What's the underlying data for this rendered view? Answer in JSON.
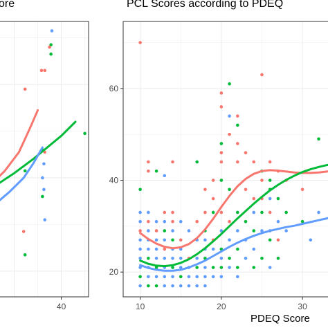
{
  "chart_data": [
    {
      "type": "scatter",
      "title": "ore",
      "xlabel": "",
      "ylabel": "",
      "x_ticks": [
        40
      ],
      "xlim": [
        25.5,
        45.8
      ],
      "ylim": [
        14.5,
        73.5
      ],
      "grid": true,
      "colors": {
        "red": "#F8766D",
        "green": "#00BA38",
        "blue": "#619CFF"
      },
      "points": [
        {
          "x": 38.0,
          "y": 71.5,
          "color": "blue"
        },
        {
          "x": 37.8,
          "y": 68.5,
          "color": "green"
        },
        {
          "x": 37.5,
          "y": 68.0,
          "color": "red"
        },
        {
          "x": 37.8,
          "y": 66.5,
          "color": "green"
        },
        {
          "x": 35.8,
          "y": 63.0,
          "color": "red"
        },
        {
          "x": 36.5,
          "y": 63.0,
          "color": "red"
        },
        {
          "x": 32.3,
          "y": 59.0,
          "color": "red"
        },
        {
          "x": 36.0,
          "y": 46.0,
          "color": "green"
        },
        {
          "x": 36.5,
          "y": 45.5,
          "color": "red"
        },
        {
          "x": 36.3,
          "y": 43.0,
          "color": "blue"
        },
        {
          "x": 36.0,
          "y": 40.0,
          "color": "blue"
        },
        {
          "x": 45.0,
          "y": 49.5,
          "color": "green"
        },
        {
          "x": 32.3,
          "y": 41.5,
          "color": "green"
        },
        {
          "x": 36.0,
          "y": 36.0,
          "color": "green"
        },
        {
          "x": 36.3,
          "y": 37.5,
          "color": "blue"
        },
        {
          "x": 36.5,
          "y": 31.0,
          "color": "blue"
        },
        {
          "x": 32.0,
          "y": 28.5,
          "color": "red"
        },
        {
          "x": 32.3,
          "y": 23.5,
          "color": "green"
        }
      ],
      "curves": [
        {
          "color": "red",
          "x": [
            25.5,
            28.0,
            31.0,
            33.5,
            35.0
          ],
          "y": [
            39.0,
            41.5,
            45.5,
            51.0,
            54.5
          ]
        },
        {
          "color": "green",
          "x": [
            25.5,
            30.0,
            34.0,
            37.0,
            40.0,
            43.0
          ],
          "y": [
            38.0,
            41.0,
            44.0,
            46.5,
            49.0,
            52.0
          ]
        },
        {
          "color": "blue",
          "x": [
            25.5,
            29.0,
            32.0,
            34.0,
            36.0
          ],
          "y": [
            34.0,
            37.0,
            40.0,
            43.0,
            46.5
          ]
        }
      ]
    },
    {
      "type": "scatter",
      "title": "PCL Scores according to PDEQ",
      "xlabel": "PDEQ Score",
      "ylabel": "",
      "x_ticks": [
        10,
        20,
        30
      ],
      "y_ticks": [
        20,
        40,
        60
      ],
      "xlim": [
        7.9,
        34.0
      ],
      "ylim": [
        14.6,
        74.6
      ],
      "grid": true,
      "colors": {
        "red": "#F8766D",
        "green": "#00BA38",
        "blue": "#619CFF"
      },
      "points": [
        {
          "x": 10,
          "y": 70,
          "color": "red"
        },
        {
          "x": 10,
          "y": 38,
          "color": "green"
        },
        {
          "x": 10,
          "y": 33,
          "color": "blue"
        },
        {
          "x": 10,
          "y": 31,
          "color": "blue"
        },
        {
          "x": 10,
          "y": 29,
          "color": "red"
        },
        {
          "x": 10,
          "y": 27,
          "color": "blue"
        },
        {
          "x": 10,
          "y": 25,
          "color": "blue"
        },
        {
          "x": 10,
          "y": 23,
          "color": "blue"
        },
        {
          "x": 10,
          "y": 21,
          "color": "blue"
        },
        {
          "x": 10,
          "y": 19,
          "color": "green"
        },
        {
          "x": 10,
          "y": 17,
          "color": "blue"
        },
        {
          "x": 11,
          "y": 44,
          "color": "red"
        },
        {
          "x": 11,
          "y": 42,
          "color": "red"
        },
        {
          "x": 11,
          "y": 33,
          "color": "blue"
        },
        {
          "x": 11,
          "y": 31,
          "color": "red"
        },
        {
          "x": 11,
          "y": 29,
          "color": "blue"
        },
        {
          "x": 11,
          "y": 27,
          "color": "blue"
        },
        {
          "x": 11,
          "y": 25,
          "color": "blue"
        },
        {
          "x": 11,
          "y": 23,
          "color": "green"
        },
        {
          "x": 11,
          "y": 21,
          "color": "blue"
        },
        {
          "x": 11,
          "y": 19,
          "color": "blue"
        },
        {
          "x": 11,
          "y": 17,
          "color": "green"
        },
        {
          "x": 12,
          "y": 42,
          "color": "green"
        },
        {
          "x": 12,
          "y": 31,
          "color": "blue"
        },
        {
          "x": 12,
          "y": 29,
          "color": "red"
        },
        {
          "x": 12,
          "y": 27,
          "color": "blue"
        },
        {
          "x": 12,
          "y": 25,
          "color": "blue"
        },
        {
          "x": 12,
          "y": 23,
          "color": "blue"
        },
        {
          "x": 12,
          "y": 21,
          "color": "green"
        },
        {
          "x": 12,
          "y": 19,
          "color": "blue"
        },
        {
          "x": 12,
          "y": 17,
          "color": "green"
        },
        {
          "x": 13,
          "y": 41,
          "color": "blue"
        },
        {
          "x": 13,
          "y": 33,
          "color": "red"
        },
        {
          "x": 13,
          "y": 31,
          "color": "blue"
        },
        {
          "x": 13,
          "y": 29,
          "color": "green"
        },
        {
          "x": 13,
          "y": 27,
          "color": "blue"
        },
        {
          "x": 13,
          "y": 25,
          "color": "red"
        },
        {
          "x": 13,
          "y": 23,
          "color": "blue"
        },
        {
          "x": 13,
          "y": 21,
          "color": "blue"
        },
        {
          "x": 13,
          "y": 19,
          "color": "blue"
        },
        {
          "x": 13,
          "y": 17,
          "color": "blue"
        },
        {
          "x": 14,
          "y": 44,
          "color": "red"
        },
        {
          "x": 14,
          "y": 33,
          "color": "red"
        },
        {
          "x": 14,
          "y": 31,
          "color": "red"
        },
        {
          "x": 14,
          "y": 29,
          "color": "blue"
        },
        {
          "x": 14,
          "y": 27,
          "color": "green"
        },
        {
          "x": 14,
          "y": 25,
          "color": "blue"
        },
        {
          "x": 14,
          "y": 23,
          "color": "blue"
        },
        {
          "x": 14,
          "y": 21,
          "color": "green"
        },
        {
          "x": 14,
          "y": 19,
          "color": "blue"
        },
        {
          "x": 14,
          "y": 17,
          "color": "blue"
        },
        {
          "x": 15,
          "y": 31,
          "color": "blue"
        },
        {
          "x": 15,
          "y": 27,
          "color": "red"
        },
        {
          "x": 15,
          "y": 25,
          "color": "blue"
        },
        {
          "x": 15,
          "y": 23,
          "color": "blue"
        },
        {
          "x": 15,
          "y": 21,
          "color": "blue"
        },
        {
          "x": 15,
          "y": 19,
          "color": "green"
        },
        {
          "x": 15,
          "y": 17,
          "color": "blue"
        },
        {
          "x": 16,
          "y": 29,
          "color": "blue"
        },
        {
          "x": 16,
          "y": 23,
          "color": "red"
        },
        {
          "x": 16,
          "y": 21,
          "color": "blue"
        },
        {
          "x": 16,
          "y": 19,
          "color": "blue"
        },
        {
          "x": 16,
          "y": 17,
          "color": "blue"
        },
        {
          "x": 17,
          "y": 44,
          "color": "green"
        },
        {
          "x": 17,
          "y": 31,
          "color": "red"
        },
        {
          "x": 17,
          "y": 27,
          "color": "blue"
        },
        {
          "x": 17,
          "y": 23,
          "color": "blue"
        },
        {
          "x": 17,
          "y": 21,
          "color": "green"
        },
        {
          "x": 17,
          "y": 19,
          "color": "blue"
        },
        {
          "x": 17,
          "y": 17,
          "color": "blue"
        },
        {
          "x": 18,
          "y": 38,
          "color": "red"
        },
        {
          "x": 18,
          "y": 33,
          "color": "red"
        },
        {
          "x": 18,
          "y": 29,
          "color": "green"
        },
        {
          "x": 18,
          "y": 27,
          "color": "blue"
        },
        {
          "x": 18,
          "y": 25,
          "color": "blue"
        },
        {
          "x": 18,
          "y": 23,
          "color": "green"
        },
        {
          "x": 18,
          "y": 21,
          "color": "blue"
        },
        {
          "x": 18,
          "y": 19,
          "color": "blue"
        },
        {
          "x": 18,
          "y": 17,
          "color": "blue"
        },
        {
          "x": 19,
          "y": 40,
          "color": "red"
        },
        {
          "x": 19,
          "y": 36,
          "color": "red"
        },
        {
          "x": 19,
          "y": 33,
          "color": "green"
        },
        {
          "x": 19,
          "y": 27,
          "color": "red"
        },
        {
          "x": 19,
          "y": 25,
          "color": "blue"
        },
        {
          "x": 19,
          "y": 21,
          "color": "green"
        },
        {
          "x": 19,
          "y": 19,
          "color": "blue"
        },
        {
          "x": 20,
          "y": 59,
          "color": "red"
        },
        {
          "x": 20,
          "y": 56,
          "color": "red"
        },
        {
          "x": 20,
          "y": 48,
          "color": "green"
        },
        {
          "x": 20,
          "y": 46,
          "color": "red"
        },
        {
          "x": 20,
          "y": 44,
          "color": "red"
        },
        {
          "x": 20,
          "y": 40,
          "color": "green"
        },
        {
          "x": 20,
          "y": 33,
          "color": "red"
        },
        {
          "x": 20,
          "y": 29,
          "color": "blue"
        },
        {
          "x": 20,
          "y": 25,
          "color": "green"
        },
        {
          "x": 20,
          "y": 23,
          "color": "blue"
        },
        {
          "x": 20,
          "y": 21,
          "color": "green"
        },
        {
          "x": 20,
          "y": 19,
          "color": "blue"
        },
        {
          "x": 21,
          "y": 61,
          "color": "green"
        },
        {
          "x": 21,
          "y": 54,
          "color": "blue"
        },
        {
          "x": 21,
          "y": 50,
          "color": "red"
        },
        {
          "x": 21,
          "y": 38,
          "color": "green"
        },
        {
          "x": 21,
          "y": 31,
          "color": "red"
        },
        {
          "x": 21,
          "y": 27,
          "color": "blue"
        },
        {
          "x": 21,
          "y": 23,
          "color": "green"
        },
        {
          "x": 21,
          "y": 21,
          "color": "blue"
        },
        {
          "x": 22,
          "y": 54,
          "color": "red"
        },
        {
          "x": 22,
          "y": 52,
          "color": "green"
        },
        {
          "x": 22,
          "y": 48,
          "color": "red"
        },
        {
          "x": 22,
          "y": 44,
          "color": "red"
        },
        {
          "x": 22,
          "y": 33,
          "color": "green"
        },
        {
          "x": 22,
          "y": 29,
          "color": "blue"
        },
        {
          "x": 22,
          "y": 25,
          "color": "green"
        },
        {
          "x": 22,
          "y": 21,
          "color": "green"
        },
        {
          "x": 22,
          "y": 19,
          "color": "blue"
        },
        {
          "x": 23,
          "y": 46,
          "color": "red"
        },
        {
          "x": 23,
          "y": 38,
          "color": "red"
        },
        {
          "x": 23,
          "y": 31,
          "color": "green"
        },
        {
          "x": 23,
          "y": 27,
          "color": "blue"
        },
        {
          "x": 23,
          "y": 23,
          "color": "blue"
        },
        {
          "x": 24,
          "y": 44,
          "color": "red"
        },
        {
          "x": 24,
          "y": 36,
          "color": "red"
        },
        {
          "x": 24,
          "y": 33,
          "color": "blue"
        },
        {
          "x": 24,
          "y": 29,
          "color": "green"
        },
        {
          "x": 24,
          "y": 25,
          "color": "blue"
        },
        {
          "x": 24,
          "y": 21,
          "color": "green"
        },
        {
          "x": 25,
          "y": 63,
          "color": "red"
        },
        {
          "x": 25,
          "y": 42,
          "color": "green"
        },
        {
          "x": 25,
          "y": 40,
          "color": "red"
        },
        {
          "x": 25,
          "y": 36,
          "color": "red"
        },
        {
          "x": 25,
          "y": 33,
          "color": "green"
        },
        {
          "x": 25,
          "y": 29,
          "color": "blue"
        },
        {
          "x": 25,
          "y": 23,
          "color": "green"
        },
        {
          "x": 26,
          "y": 44,
          "color": "red"
        },
        {
          "x": 26,
          "y": 40,
          "color": "green"
        },
        {
          "x": 26,
          "y": 38,
          "color": "green"
        },
        {
          "x": 26,
          "y": 36,
          "color": "blue"
        },
        {
          "x": 26,
          "y": 33,
          "color": "red"
        },
        {
          "x": 26,
          "y": 29,
          "color": "blue"
        },
        {
          "x": 26,
          "y": 27,
          "color": "green"
        },
        {
          "x": 26,
          "y": 21,
          "color": "blue"
        },
        {
          "x": 27,
          "y": 42,
          "color": "red"
        },
        {
          "x": 27,
          "y": 36,
          "color": "green"
        },
        {
          "x": 27,
          "y": 31,
          "color": "blue"
        },
        {
          "x": 27,
          "y": 27,
          "color": "red"
        },
        {
          "x": 27,
          "y": 23,
          "color": "green"
        },
        {
          "x": 28,
          "y": 40,
          "color": "red"
        },
        {
          "x": 28,
          "y": 33,
          "color": "green"
        },
        {
          "x": 28,
          "y": 29,
          "color": "blue"
        },
        {
          "x": 30,
          "y": 38,
          "color": "red"
        },
        {
          "x": 30,
          "y": 31,
          "color": "green"
        },
        {
          "x": 31,
          "y": 27,
          "color": "blue"
        },
        {
          "x": 32,
          "y": 49,
          "color": "green"
        },
        {
          "x": 32,
          "y": 33,
          "color": "blue"
        }
      ],
      "curves": [
        {
          "color": "red",
          "x": [
            10,
            11,
            12,
            13,
            14,
            15,
            16,
            17,
            18,
            19,
            20,
            21,
            22,
            23,
            24,
            25,
            26,
            27,
            28,
            29,
            30,
            31,
            32,
            33,
            34
          ],
          "y": [
            28.5,
            27.2,
            26.2,
            25.5,
            25.2,
            25.4,
            26.1,
            27.4,
            29.3,
            31.6,
            34.2,
            36.6,
            38.7,
            40.3,
            41.4,
            42.0,
            42.2,
            42.1,
            41.9,
            41.7,
            41.6,
            41.6,
            41.7,
            41.9,
            42.1
          ]
        },
        {
          "color": "green",
          "x": [
            10,
            11,
            12,
            13,
            14,
            15,
            16,
            17,
            18,
            19,
            20,
            21,
            22,
            23,
            24,
            25,
            26,
            27,
            28,
            29,
            30,
            31,
            32,
            33,
            34
          ],
          "y": [
            22.5,
            21.8,
            21.4,
            21.3,
            21.5,
            22.0,
            22.8,
            23.9,
            25.2,
            26.7,
            28.3,
            30.0,
            31.7,
            33.3,
            34.9,
            36.4,
            37.8,
            39.0,
            40.1,
            41.0,
            41.8,
            42.4,
            42.9,
            43.3,
            43.6
          ]
        },
        {
          "color": "blue",
          "x": [
            10,
            11,
            12,
            13,
            14,
            15,
            16,
            17,
            18,
            19,
            20,
            21,
            22,
            23,
            24,
            25,
            26,
            27,
            28,
            29,
            30,
            31,
            32,
            33,
            34
          ],
          "y": [
            21.5,
            20.9,
            20.5,
            20.3,
            20.3,
            20.5,
            21.0,
            21.7,
            22.5,
            23.5,
            24.5,
            25.5,
            26.4,
            27.2,
            27.9,
            28.5,
            29.0,
            29.4,
            29.8,
            30.1,
            30.5,
            30.9,
            31.3,
            31.7,
            32.1
          ]
        }
      ]
    }
  ]
}
